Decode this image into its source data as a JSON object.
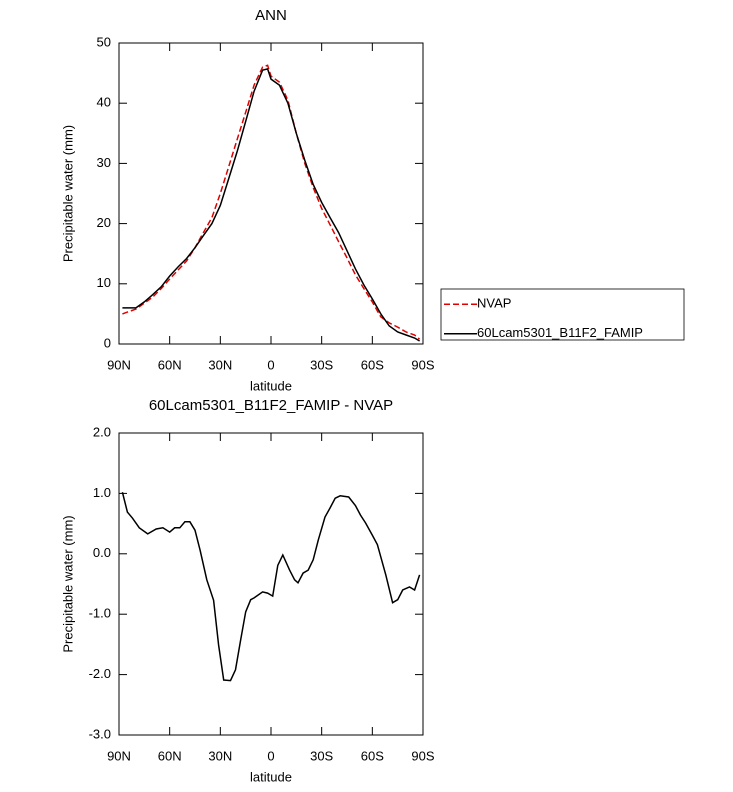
{
  "chart_data": [
    {
      "type": "line",
      "title": "ANN",
      "xlabel": "latitude",
      "ylabel": "Precipitable water (mm)",
      "xlim": [
        90,
        -90
      ],
      "xticks": [
        {
          "value": 90,
          "label": "90N"
        },
        {
          "value": 60,
          "label": "60N"
        },
        {
          "value": 30,
          "label": "30N"
        },
        0,
        {
          "value": -30,
          "label": "30S"
        },
        {
          "value": -60,
          "label": "60S"
        },
        {
          "value": -90,
          "label": "90S"
        }
      ],
      "ylim": [
        0,
        50
      ],
      "yticks": [
        0,
        10,
        20,
        30,
        40,
        50
      ],
      "legend": "right",
      "x": [
        88,
        85,
        80,
        75,
        70,
        65,
        60,
        55,
        50,
        45,
        40,
        35,
        30,
        25,
        20,
        15,
        10,
        5,
        2,
        0,
        -5,
        -10,
        -15,
        -20,
        -25,
        -30,
        -35,
        -40,
        -45,
        -50,
        -55,
        -60,
        -65,
        -70,
        -75,
        -80,
        -85,
        -88
      ],
      "series": [
        {
          "name": "NVAP",
          "color": "#e00000",
          "dashed": true,
          "values": [
            5,
            5.3,
            5.8,
            6.8,
            7.8,
            9.2,
            10.8,
            12.3,
            13.8,
            16,
            18.5,
            21,
            25,
            29.5,
            34,
            38.5,
            43,
            46,
            46.3,
            44.5,
            43.5,
            40.5,
            35,
            30,
            26,
            22.5,
            19.8,
            17,
            14.3,
            11.5,
            9.2,
            7,
            4.5,
            3.5,
            2.8,
            2,
            1.5,
            0.8
          ]
        },
        {
          "name": "60Lcam5301_B11F2_FAMIP",
          "color": "#000000",
          "dashed": false,
          "values": [
            6,
            6,
            6,
            7,
            8.2,
            9.5,
            11.3,
            12.8,
            14.2,
            16,
            18,
            20,
            23,
            27.5,
            32,
            37,
            42,
            45.5,
            45.7,
            44,
            43,
            40,
            35,
            30.5,
            26.5,
            23.5,
            21,
            18.5,
            15.5,
            12.5,
            9.8,
            7.5,
            5,
            3,
            2,
            1.5,
            1,
            0.5
          ]
        }
      ]
    },
    {
      "type": "line",
      "title": "60Lcam5301_B11F2_FAMIP - NVAP",
      "xlabel": "latitude",
      "ylabel": "Precipitable water (mm)",
      "xlim": [
        90,
        -90
      ],
      "xticks": [
        {
          "value": 90,
          "label": "90N"
        },
        {
          "value": 60,
          "label": "60N"
        },
        {
          "value": 30,
          "label": "30N"
        },
        0,
        {
          "value": -30,
          "label": "30S"
        },
        {
          "value": -60,
          "label": "60S"
        },
        {
          "value": -90,
          "label": "90S"
        }
      ],
      "ylim": [
        -3,
        2
      ],
      "yticks": [
        {
          "value": 2,
          "label": "2.0"
        },
        {
          "value": 1,
          "label": "1.0"
        },
        {
          "value": 0,
          "label": "0.0"
        },
        {
          "value": -1,
          "label": "-1.0"
        },
        {
          "value": -2,
          "label": "-2.0"
        },
        {
          "value": -3,
          "label": "-3.0"
        }
      ],
      "x": [
        88,
        85,
        82,
        78,
        73,
        68,
        64,
        60,
        57,
        54,
        51,
        48,
        45,
        42,
        38,
        34,
        31,
        28,
        24,
        21,
        18,
        15,
        12,
        10,
        5,
        2,
        -1,
        -4,
        -7,
        -11,
        -14,
        -16,
        -19,
        -22,
        -25,
        -28,
        -32,
        -35,
        -38,
        -41,
        -46,
        -50,
        -53,
        -56,
        -60,
        -63,
        -68,
        -72,
        -75,
        -78,
        -82,
        -85,
        -88
      ],
      "series": [
        {
          "color": "#000000",
          "dashed": false,
          "values": [
            1.02,
            0.69,
            0.59,
            0.43,
            0.33,
            0.41,
            0.43,
            0.36,
            0.43,
            0.43,
            0.53,
            0.53,
            0.39,
            0.06,
            -0.43,
            -0.77,
            -1.51,
            -2.09,
            -2.1,
            -1.92,
            -1.43,
            -0.96,
            -0.76,
            -0.73,
            -0.63,
            -0.65,
            -0.7,
            -0.19,
            -0.02,
            -0.27,
            -0.43,
            -0.48,
            -0.32,
            -0.27,
            -0.1,
            0.23,
            0.61,
            0.76,
            0.92,
            0.96,
            0.94,
            0.8,
            0.64,
            0.51,
            0.31,
            0.15,
            -0.35,
            -0.81,
            -0.76,
            -0.6,
            -0.55,
            -0.6,
            -0.35
          ]
        }
      ]
    }
  ]
}
